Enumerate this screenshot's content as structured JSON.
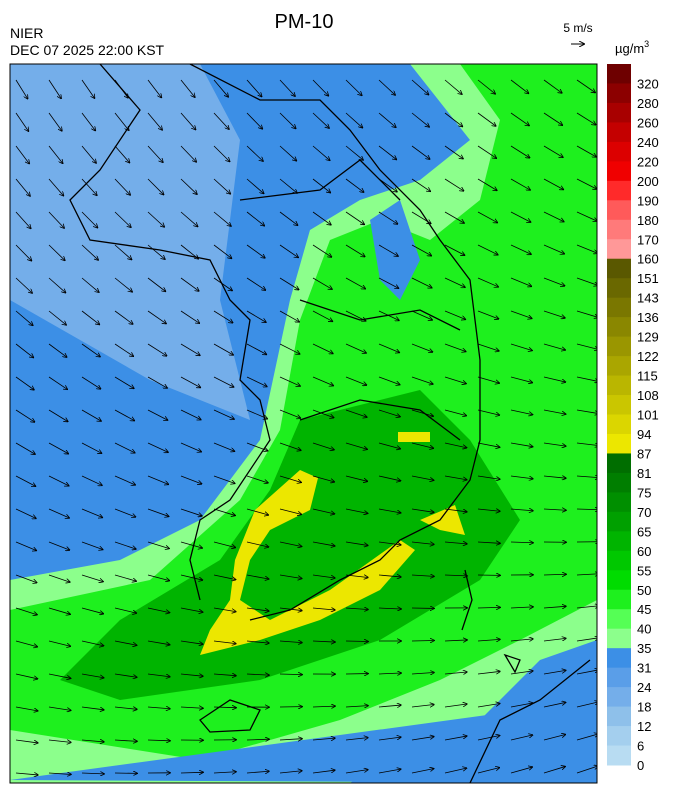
{
  "header": {
    "title": "PM-10",
    "agency": "NIER",
    "timestamp": "DEC 07 2025 22:00 KST",
    "wind_scale": "5 m/s",
    "unit": "µg/m",
    "unit_sup": "3"
  },
  "colorbar": {
    "levels": [
      320,
      280,
      260,
      240,
      220,
      200,
      190,
      180,
      170,
      160,
      151,
      143,
      136,
      129,
      122,
      115,
      108,
      101,
      94,
      87,
      81,
      75,
      70,
      65,
      60,
      55,
      50,
      45,
      40,
      35,
      31,
      24,
      18,
      12,
      6,
      0
    ],
    "colors": [
      "#6e0000",
      "#8c0000",
      "#a80000",
      "#c40000",
      "#dc0000",
      "#f00000",
      "#ff2a2a",
      "#ff5a5a",
      "#ff7a7a",
      "#ff9898",
      "#5a5800",
      "#6a6800",
      "#7a7700",
      "#8a8700",
      "#9a9600",
      "#aaa600",
      "#bab600",
      "#cac600",
      "#dbd600",
      "#ece700",
      "#006e00",
      "#007e00",
      "#008f00",
      "#00a000",
      "#00b400",
      "#00c800",
      "#00dc00",
      "#1ef01e",
      "#55ff55",
      "#8cff8c",
      "#3c8fe6",
      "#5a9ee8",
      "#74aeea",
      "#8ec0ea",
      "#a4cfee",
      "#b8dcf2"
    ]
  }
}
